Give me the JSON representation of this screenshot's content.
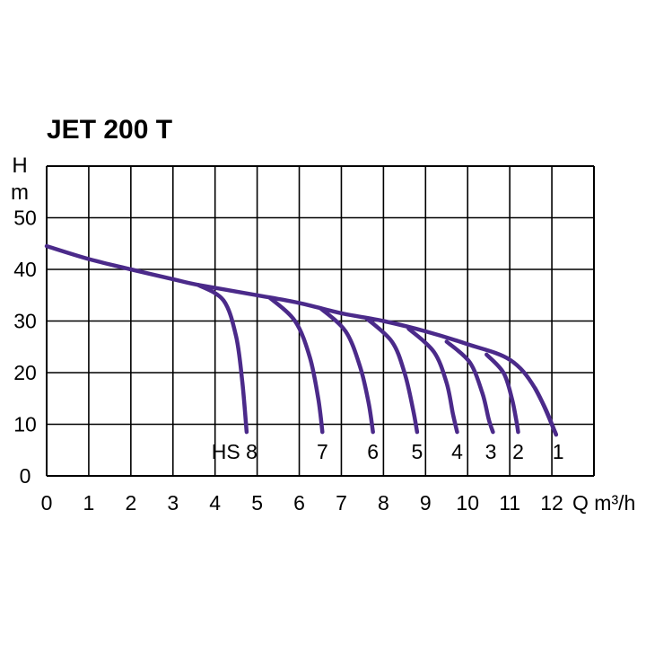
{
  "chart_data": {
    "type": "line",
    "title": "JET 200 T",
    "ylabel_line1": "H",
    "ylabel_line2": "m",
    "xlabel": "Q m³/h",
    "xlim": [
      0,
      13
    ],
    "ylim": [
      0,
      60
    ],
    "x_ticks": [
      "0",
      "1",
      "2",
      "3",
      "4",
      "5",
      "6",
      "7",
      "8",
      "9",
      "10",
      "11",
      "12"
    ],
    "y_ticks": [
      "0",
      "10",
      "20",
      "30",
      "40",
      "50"
    ],
    "y_tick_values": [
      0,
      10,
      20,
      30,
      40,
      50
    ],
    "grid": true,
    "curve_color": "#4b2a8a",
    "envelope": {
      "x": [
        0,
        1,
        2,
        3,
        3.6,
        5,
        6,
        7,
        8,
        9,
        10,
        11,
        11.6,
        12.1
      ],
      "y": [
        44.5,
        42,
        40,
        38.1,
        37,
        35,
        33.5,
        31.5,
        30,
        28,
        25.5,
        22.5,
        17,
        8
      ]
    },
    "series": [
      {
        "name": "HS 8",
        "x": [
          3.6,
          4.2,
          4.5,
          4.65,
          4.75
        ],
        "y": [
          37,
          34,
          27,
          18,
          8.5
        ]
      },
      {
        "name": "7",
        "x": [
          5.3,
          5.9,
          6.25,
          6.45,
          6.55
        ],
        "y": [
          34.5,
          30,
          23,
          15,
          8.5
        ]
      },
      {
        "name": "6",
        "x": [
          6.5,
          7.1,
          7.45,
          7.65,
          7.75
        ],
        "y": [
          32.5,
          28,
          21,
          14,
          8.5
        ]
      },
      {
        "name": "5",
        "x": [
          7.6,
          8.2,
          8.5,
          8.7,
          8.8
        ],
        "y": [
          30.5,
          26,
          20,
          13,
          8.5
        ]
      },
      {
        "name": "4",
        "x": [
          8.6,
          9.2,
          9.5,
          9.65,
          9.75
        ],
        "y": [
          28.5,
          24,
          18,
          12,
          8.5
        ]
      },
      {
        "name": "3",
        "x": [
          9.5,
          10.05,
          10.35,
          10.5,
          10.6
        ],
        "y": [
          26,
          22,
          16,
          11,
          8.5
        ]
      },
      {
        "name": "2",
        "x": [
          10.45,
          10.85,
          11.05,
          11.15,
          11.2
        ],
        "y": [
          23.5,
          20,
          15,
          11,
          8.5
        ]
      },
      {
        "name": "1",
        "x": [
          11.6,
          11.85,
          12.0,
          12.1
        ],
        "y": [
          17,
          13,
          10,
          8
        ]
      }
    ],
    "curve_labels": [
      {
        "text": "HS 8",
        "x": 4.75
      },
      {
        "text": "7",
        "x": 6.55
      },
      {
        "text": "6",
        "x": 7.75
      },
      {
        "text": "5",
        "x": 8.8
      },
      {
        "text": "4",
        "x": 9.75
      },
      {
        "text": "3",
        "x": 10.55
      },
      {
        "text": "2",
        "x": 11.2
      },
      {
        "text": "1",
        "x": 12.15
      }
    ]
  }
}
